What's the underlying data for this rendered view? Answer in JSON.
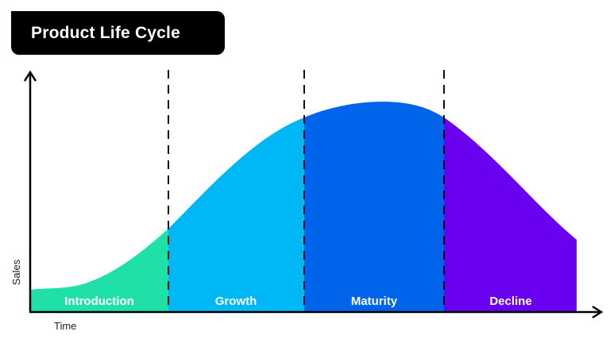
{
  "title": "Product Life Cycle",
  "axes": {
    "x_label": "Time",
    "y_label": "Sales"
  },
  "stages": [
    {
      "label": "Introduction",
      "color": "#1fe0a8"
    },
    {
      "label": "Growth",
      "color": "#00b7f5"
    },
    {
      "label": "Maturity",
      "color": "#0064ea"
    },
    {
      "label": "Decline",
      "color": "#6a00f0"
    }
  ],
  "colors": {
    "axis": "#000000",
    "divider": "#111111",
    "label_text": "#ffffff"
  }
}
